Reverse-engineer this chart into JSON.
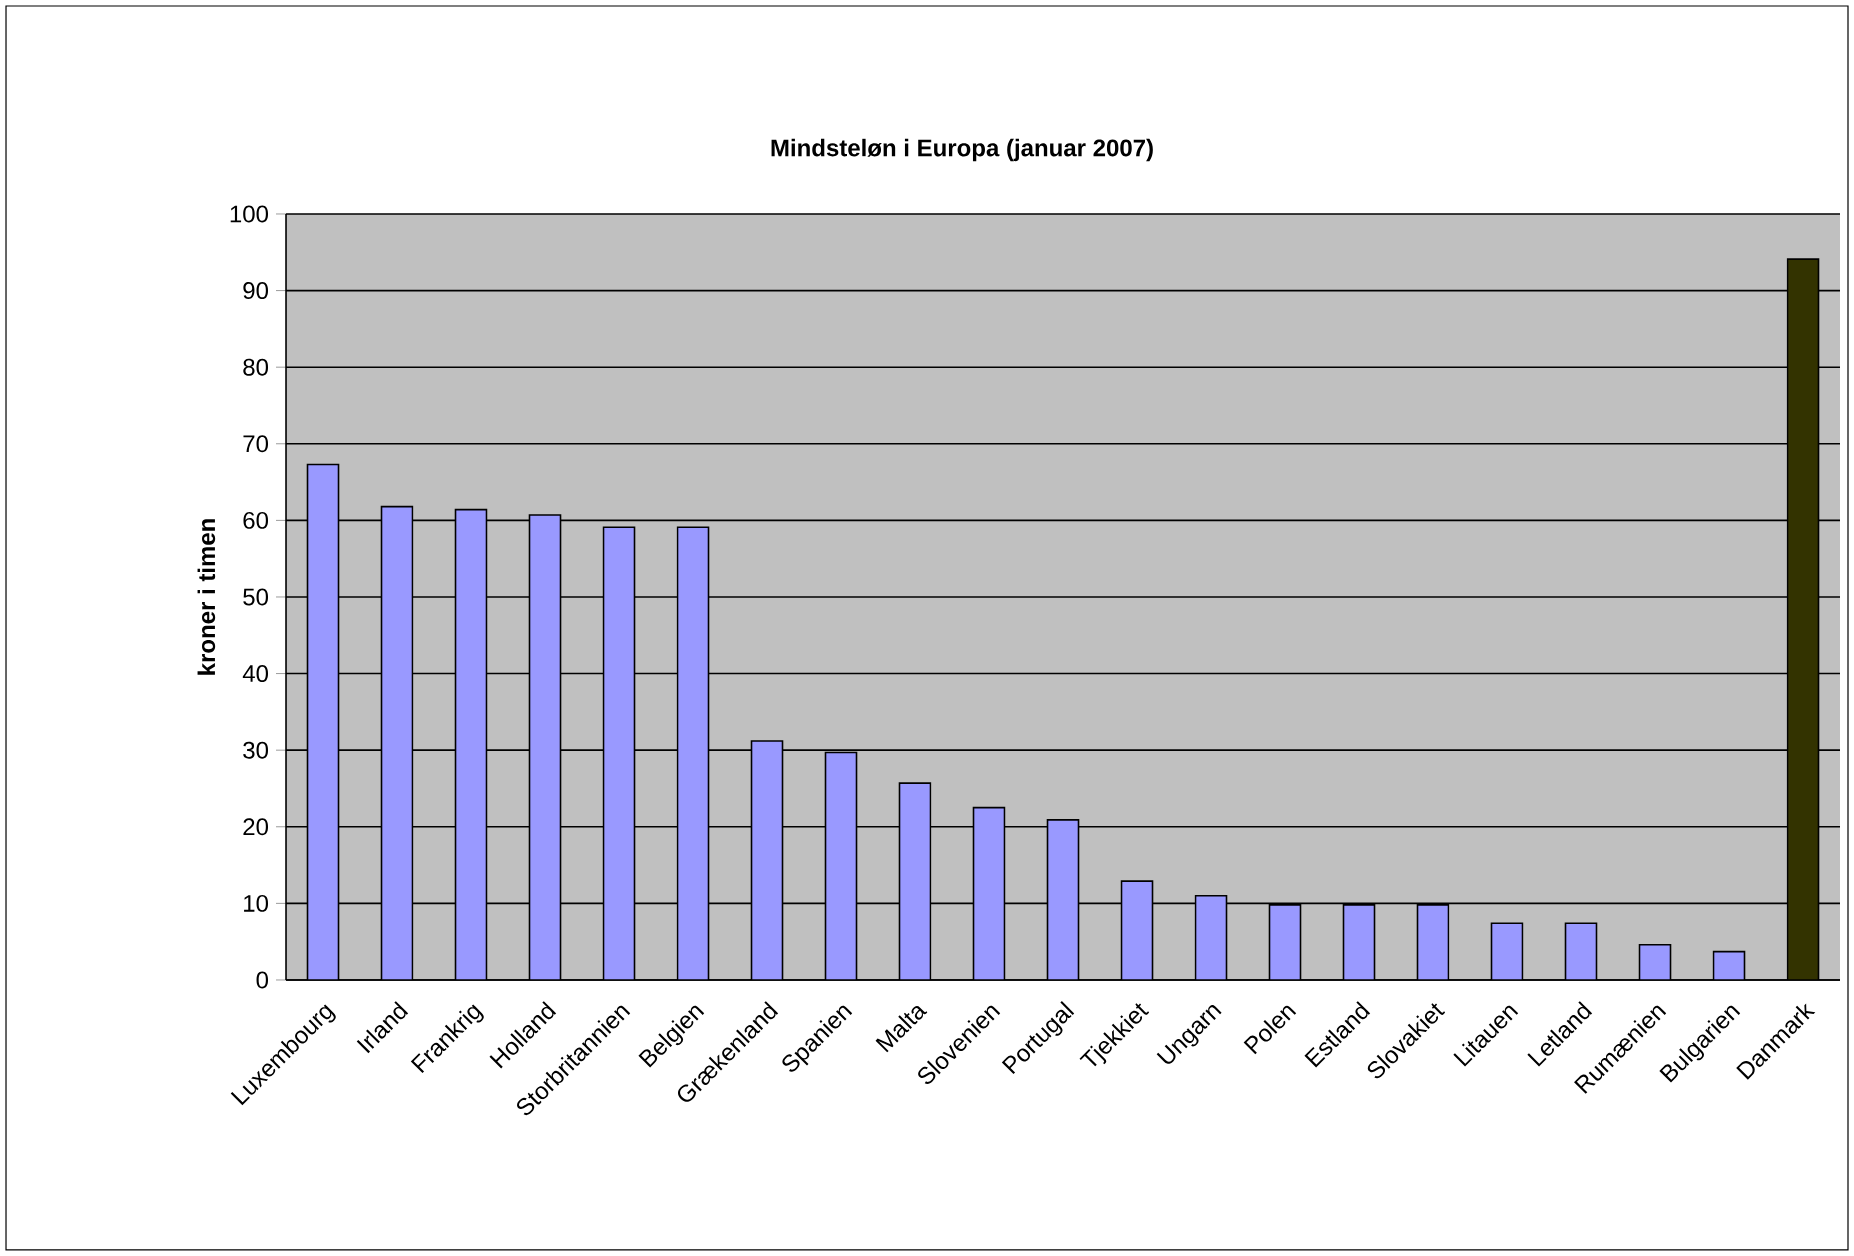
{
  "chart_data": {
    "type": "bar",
    "title": "Mindsteløn i Europa (januar 2007)",
    "ylabel": "kroner i timen",
    "categories": [
      "Luxembourg",
      "Irland",
      "Frankrig",
      "Holland",
      "Storbritannien",
      "Belgien",
      "Grækenland",
      "Spanien",
      "Malta",
      "Slovenien",
      "Portugal",
      "Tjekkiet",
      "Ungarn",
      "Polen",
      "Estland",
      "Slovakiet",
      "Litauen",
      "Letland",
      "Rumænien",
      "Bulgarien",
      "Danmark"
    ],
    "values": [
      67.3,
      61.8,
      61.4,
      60.7,
      59.1,
      59.1,
      31.2,
      29.7,
      25.7,
      22.5,
      20.9,
      12.9,
      11.0,
      9.8,
      9.8,
      9.8,
      7.4,
      7.4,
      4.6,
      3.7,
      94.1
    ],
    "colors": [
      "#9999ff",
      "#9999ff",
      "#9999ff",
      "#9999ff",
      "#9999ff",
      "#9999ff",
      "#9999ff",
      "#9999ff",
      "#9999ff",
      "#9999ff",
      "#9999ff",
      "#9999ff",
      "#9999ff",
      "#9999ff",
      "#9999ff",
      "#9999ff",
      "#9999ff",
      "#9999ff",
      "#9999ff",
      "#9999ff",
      "#333300"
    ],
    "ylim": [
      0,
      100
    ],
    "yticks": [
      0,
      10,
      20,
      30,
      40,
      50,
      60,
      70,
      80,
      90,
      100
    ],
    "grid": "y"
  }
}
